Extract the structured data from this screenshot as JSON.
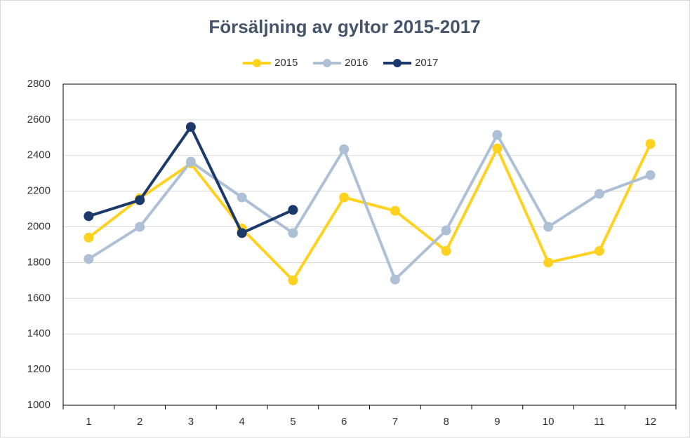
{
  "chart_data": {
    "type": "line",
    "title": "Försäljning av gyltor 2015-2017",
    "categories": [
      "1",
      "2",
      "3",
      "4",
      "5",
      "6",
      "7",
      "8",
      "9",
      "10",
      "11",
      "12"
    ],
    "series": [
      {
        "name": "2015",
        "color": "#ffd21f",
        "values": [
          1940,
          2160,
          2355,
          1990,
          1700,
          2165,
          2090,
          1865,
          2440,
          1800,
          1865,
          2465
        ]
      },
      {
        "name": "2016",
        "color": "#adc0d6",
        "values": [
          1820,
          2000,
          2365,
          2165,
          1965,
          2435,
          1705,
          1980,
          2515,
          2000,
          2185,
          2290
        ]
      },
      {
        "name": "2017",
        "color": "#1b3a6b",
        "values": [
          2060,
          2150,
          2560,
          1965,
          2095,
          null,
          null,
          null,
          null,
          null,
          null,
          null
        ]
      }
    ],
    "ylim": [
      1000,
      2800
    ],
    "yticks": [
      1000,
      1200,
      1400,
      1600,
      1800,
      2000,
      2200,
      2400,
      2600,
      2800
    ],
    "grid": true,
    "legend": "top"
  }
}
